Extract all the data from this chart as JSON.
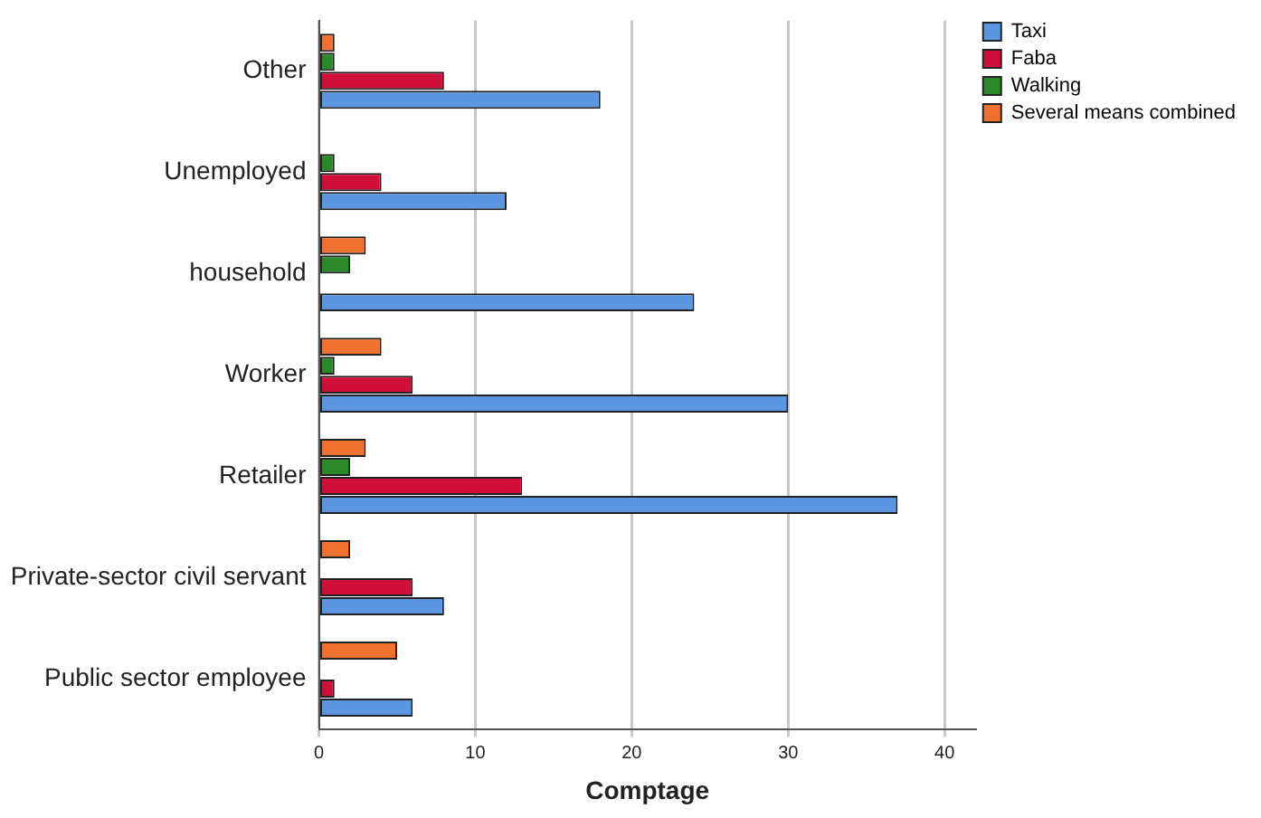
{
  "chart_data": {
    "type": "bar",
    "orientation": "horizontal",
    "xlabel": "Comptage",
    "categories": [
      "Other",
      "Unemployed",
      "household",
      "Worker",
      "Retailer",
      "Private-sector civil servant",
      "Public sector employee"
    ],
    "series": [
      {
        "name": "Taxi",
        "color": "#5b97e0",
        "values": [
          18,
          12,
          24,
          30,
          37,
          8,
          6
        ]
      },
      {
        "name": "Faba",
        "color": "#d0103a",
        "values": [
          8,
          4,
          0,
          6,
          13,
          6,
          1
        ]
      },
      {
        "name": "Walking",
        "color": "#2a8a2a",
        "values": [
          1,
          1,
          2,
          1,
          2,
          0,
          0
        ]
      },
      {
        "name": "Several means combined",
        "color": "#f07030",
        "values": [
          1,
          0,
          3,
          4,
          3,
          2,
          5
        ]
      }
    ],
    "xlim": [
      0,
      42
    ],
    "xticks": [
      0,
      10,
      20,
      30,
      40
    ],
    "grid": "x",
    "legend": "top right"
  }
}
